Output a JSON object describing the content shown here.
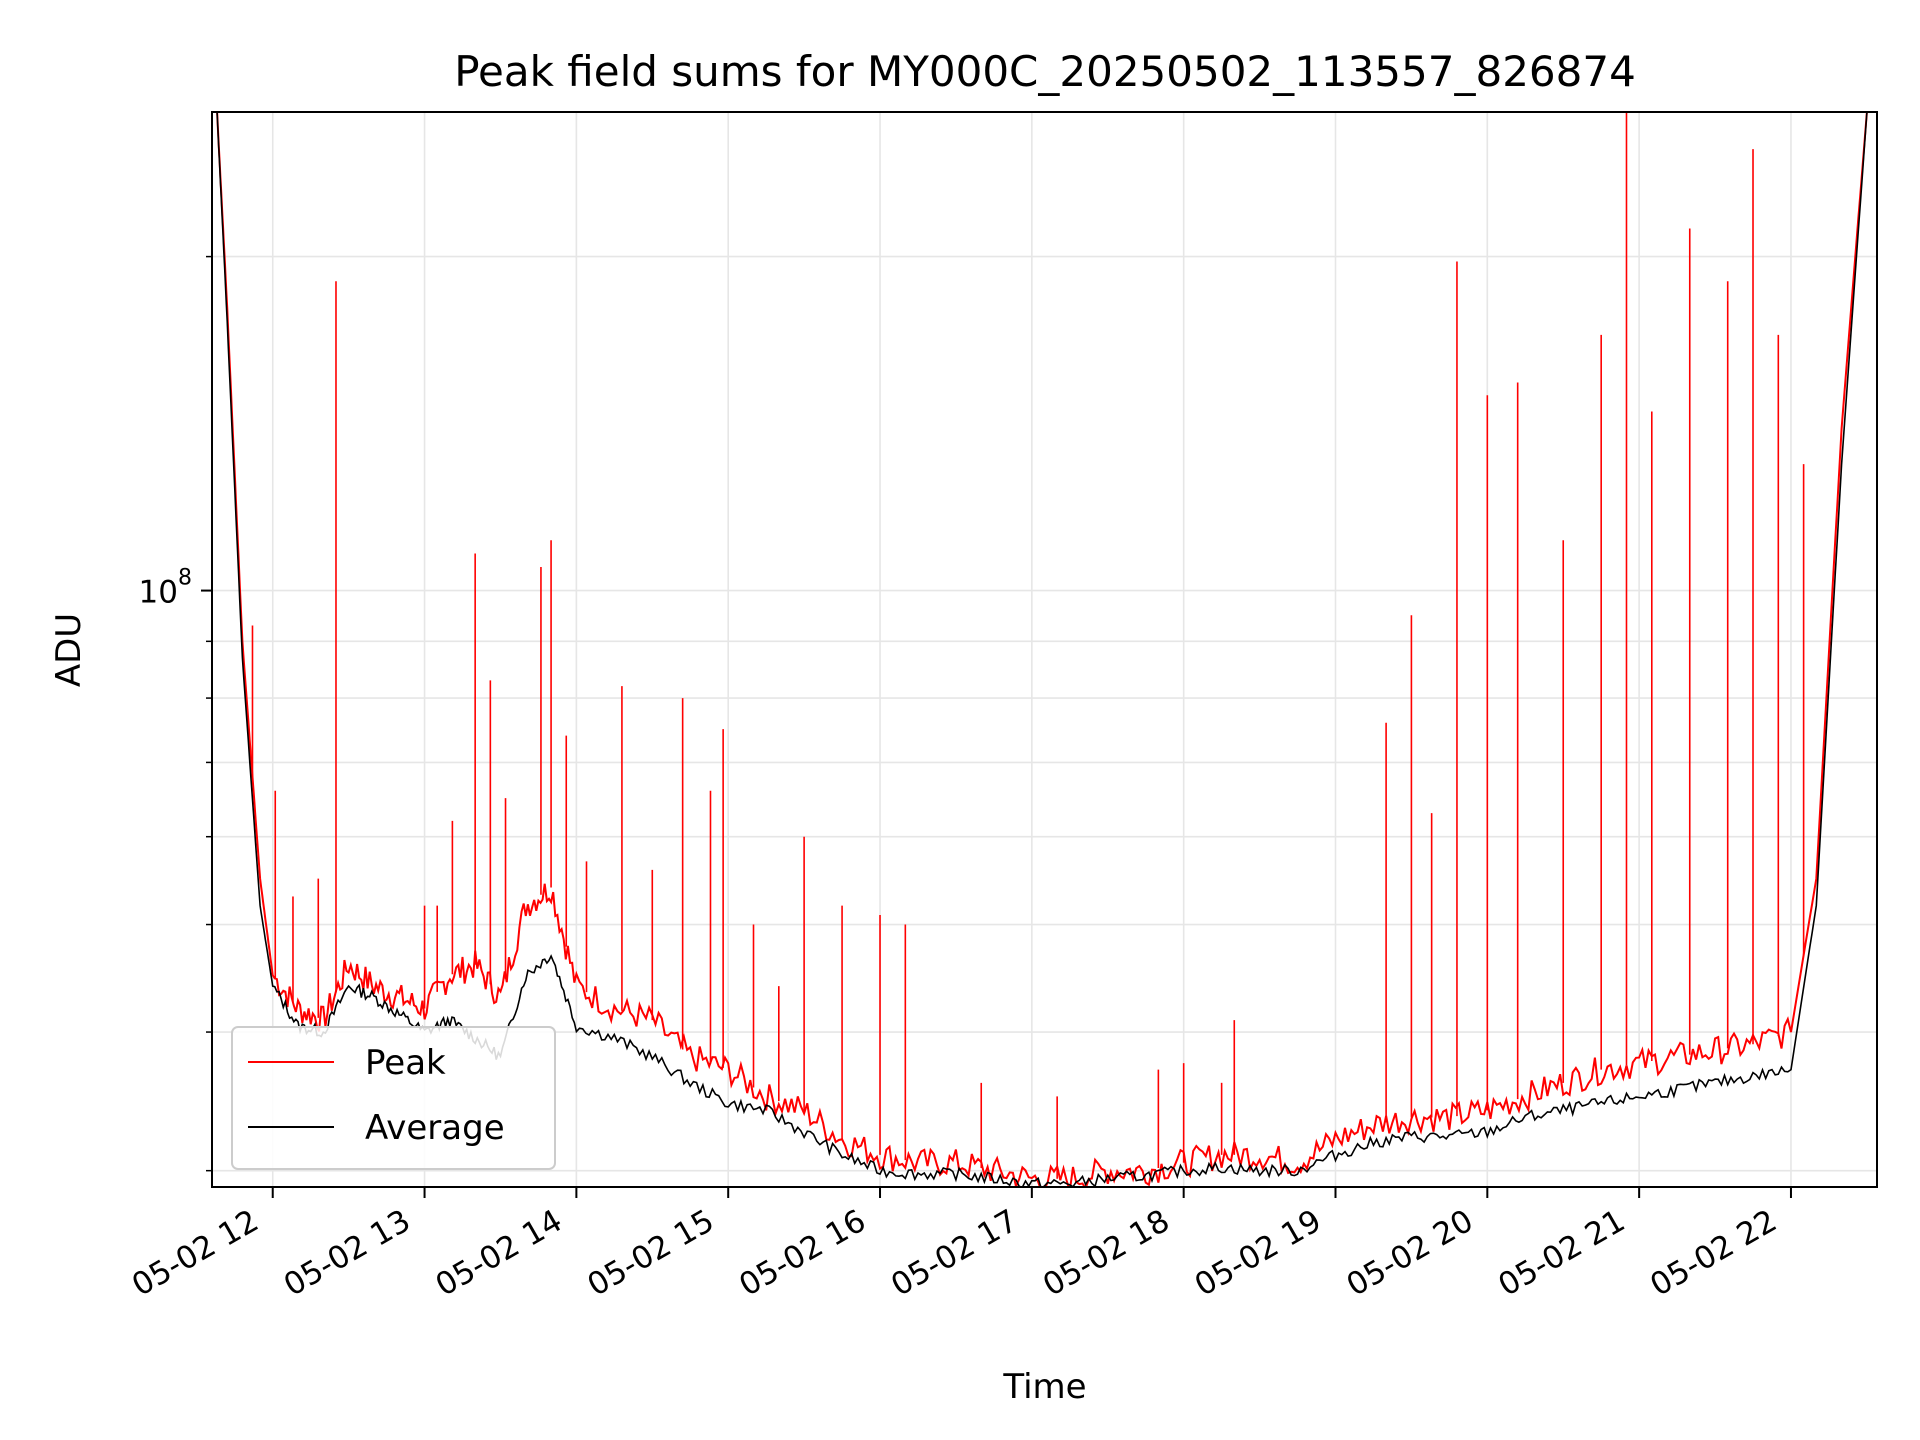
{
  "chart_data": {
    "type": "line",
    "title": "Peak field sums for MY000C_20250502_113557_826874",
    "xlabel": "Time",
    "ylabel": "ADU",
    "y_scale": "log",
    "xlim": [
      "2025-05-02 11:36",
      "2025-05-02 22:34"
    ],
    "ylim": [
      29000000,
      270000000
    ],
    "grid": true,
    "legend_placement": "lower-left",
    "x_tick_labels": [
      "05-02 12",
      "05-02 13",
      "05-02 14",
      "05-02 15",
      "05-02 16",
      "05-02 17",
      "05-02 18",
      "05-02 19",
      "05-02 20",
      "05-02 21",
      "05-02 22"
    ],
    "x_ticks": [
      "2025-05-02 12:00",
      "2025-05-02 13:00",
      "2025-05-02 14:00",
      "2025-05-02 15:00",
      "2025-05-02 16:00",
      "2025-05-02 17:00",
      "2025-05-02 18:00",
      "2025-05-02 19:00",
      "2025-05-02 20:00",
      "2025-05-02 21:00",
      "2025-05-02 22:00"
    ],
    "y_tick_labels": [
      {
        "base": "10",
        "exp": "8",
        "value": 100000000
      }
    ],
    "series": [
      {
        "name": "Peak",
        "color": "#ff0000",
        "x": [
          "11:38",
          "11:42",
          "11:48",
          "11:55",
          "12:00",
          "12:10",
          "12:20",
          "12:30",
          "12:40",
          "12:50",
          "13:00",
          "13:10",
          "13:20",
          "13:30",
          "13:40",
          "13:50",
          "14:00",
          "14:15",
          "14:30",
          "14:45",
          "15:00",
          "15:15",
          "15:30",
          "15:45",
          "16:00",
          "16:15",
          "16:30",
          "16:45",
          "17:00",
          "17:15",
          "17:30",
          "17:45",
          "18:00",
          "18:15",
          "18:30",
          "18:45",
          "19:00",
          "19:15",
          "19:30",
          "19:45",
          "20:00",
          "20:15",
          "20:30",
          "20:45",
          "21:00",
          "21:15",
          "21:30",
          "21:45",
          "22:00",
          "22:10",
          "22:20",
          "22:30"
        ],
        "y": [
          270000000,
          180000000,
          90000000,
          55000000,
          45000000,
          42000000,
          41000000,
          46000000,
          44000000,
          43000000,
          42000000,
          45000000,
          46000000,
          43000000,
          52000000,
          54000000,
          44000000,
          42000000,
          41000000,
          38000000,
          37000000,
          35000000,
          34000000,
          32000000,
          31000000,
          30500000,
          30500000,
          30000000,
          29500000,
          29500000,
          30000000,
          30000000,
          30500000,
          31000000,
          31000000,
          30500000,
          32000000,
          33000000,
          33500000,
          33500000,
          34000000,
          35000000,
          36000000,
          37000000,
          37500000,
          38000000,
          38500000,
          39000000,
          40000000,
          55000000,
          140000000,
          270000000
        ],
        "spikes": [
          {
            "x": "11:52",
            "y": 93000000
          },
          {
            "x": "12:01",
            "y": 66000000
          },
          {
            "x": "12:08",
            "y": 53000000
          },
          {
            "x": "12:18",
            "y": 55000000
          },
          {
            "x": "12:25",
            "y": 190000000
          },
          {
            "x": "13:00",
            "y": 52000000
          },
          {
            "x": "13:05",
            "y": 52000000
          },
          {
            "x": "13:11",
            "y": 62000000
          },
          {
            "x": "13:20",
            "y": 108000000
          },
          {
            "x": "13:26",
            "y": 83000000
          },
          {
            "x": "13:32",
            "y": 65000000
          },
          {
            "x": "13:46",
            "y": 105000000
          },
          {
            "x": "13:50",
            "y": 111000000
          },
          {
            "x": "13:56",
            "y": 74000000
          },
          {
            "x": "14:04",
            "y": 57000000
          },
          {
            "x": "14:18",
            "y": 82000000
          },
          {
            "x": "14:30",
            "y": 56000000
          },
          {
            "x": "14:42",
            "y": 80000000
          },
          {
            "x": "14:53",
            "y": 66000000
          },
          {
            "x": "14:58",
            "y": 75000000
          },
          {
            "x": "15:10",
            "y": 50000000
          },
          {
            "x": "15:20",
            "y": 44000000
          },
          {
            "x": "15:30",
            "y": 60000000
          },
          {
            "x": "15:45",
            "y": 52000000
          },
          {
            "x": "16:00",
            "y": 51000000
          },
          {
            "x": "16:10",
            "y": 50000000
          },
          {
            "x": "16:40",
            "y": 36000000
          },
          {
            "x": "17:10",
            "y": 35000000
          },
          {
            "x": "17:50",
            "y": 37000000
          },
          {
            "x": "18:00",
            "y": 37500000
          },
          {
            "x": "18:15",
            "y": 36000000
          },
          {
            "x": "18:20",
            "y": 41000000
          },
          {
            "x": "19:20",
            "y": 76000000
          },
          {
            "x": "19:30",
            "y": 95000000
          },
          {
            "x": "19:38",
            "y": 63000000
          },
          {
            "x": "19:48",
            "y": 198000000
          },
          {
            "x": "20:00",
            "y": 150000000
          },
          {
            "x": "20:12",
            "y": 154000000
          },
          {
            "x": "20:30",
            "y": 111000000
          },
          {
            "x": "20:45",
            "y": 170000000
          },
          {
            "x": "20:55",
            "y": 270000000
          },
          {
            "x": "21:05",
            "y": 145000000
          },
          {
            "x": "21:20",
            "y": 212000000
          },
          {
            "x": "21:35",
            "y": 190000000
          },
          {
            "x": "21:45",
            "y": 250000000
          },
          {
            "x": "21:55",
            "y": 170000000
          },
          {
            "x": "22:05",
            "y": 130000000
          }
        ]
      },
      {
        "name": "Average",
        "color": "#000000",
        "x": [
          "11:38",
          "11:42",
          "11:48",
          "11:55",
          "12:00",
          "12:10",
          "12:20",
          "12:30",
          "12:40",
          "12:50",
          "13:00",
          "13:10",
          "13:20",
          "13:30",
          "13:40",
          "13:50",
          "14:00",
          "14:15",
          "14:30",
          "14:45",
          "15:00",
          "15:15",
          "15:30",
          "15:45",
          "16:00",
          "16:15",
          "16:30",
          "16:45",
          "17:00",
          "17:15",
          "17:30",
          "17:45",
          "18:00",
          "18:15",
          "18:30",
          "18:45",
          "19:00",
          "19:15",
          "19:30",
          "19:45",
          "20:00",
          "20:15",
          "20:30",
          "20:45",
          "21:00",
          "21:15",
          "21:30",
          "21:45",
          "22:00",
          "22:10",
          "22:20",
          "22:30"
        ],
        "y": [
          270000000,
          175000000,
          87000000,
          52000000,
          44000000,
          40500000,
          40000000,
          44000000,
          43000000,
          41500000,
          40000000,
          41000000,
          39500000,
          38000000,
          45000000,
          47000000,
          40500000,
          39500000,
          38000000,
          36000000,
          34500000,
          34000000,
          32500000,
          31000000,
          30000000,
          29800000,
          29800000,
          29500000,
          29200000,
          29200000,
          29500000,
          29700000,
          30000000,
          30200000,
          30000000,
          30000000,
          31000000,
          31800000,
          32200000,
          32200000,
          32500000,
          33500000,
          34000000,
          34500000,
          35000000,
          35500000,
          36000000,
          36500000,
          37000000,
          52000000,
          130000000,
          270000000
        ]
      }
    ]
  }
}
